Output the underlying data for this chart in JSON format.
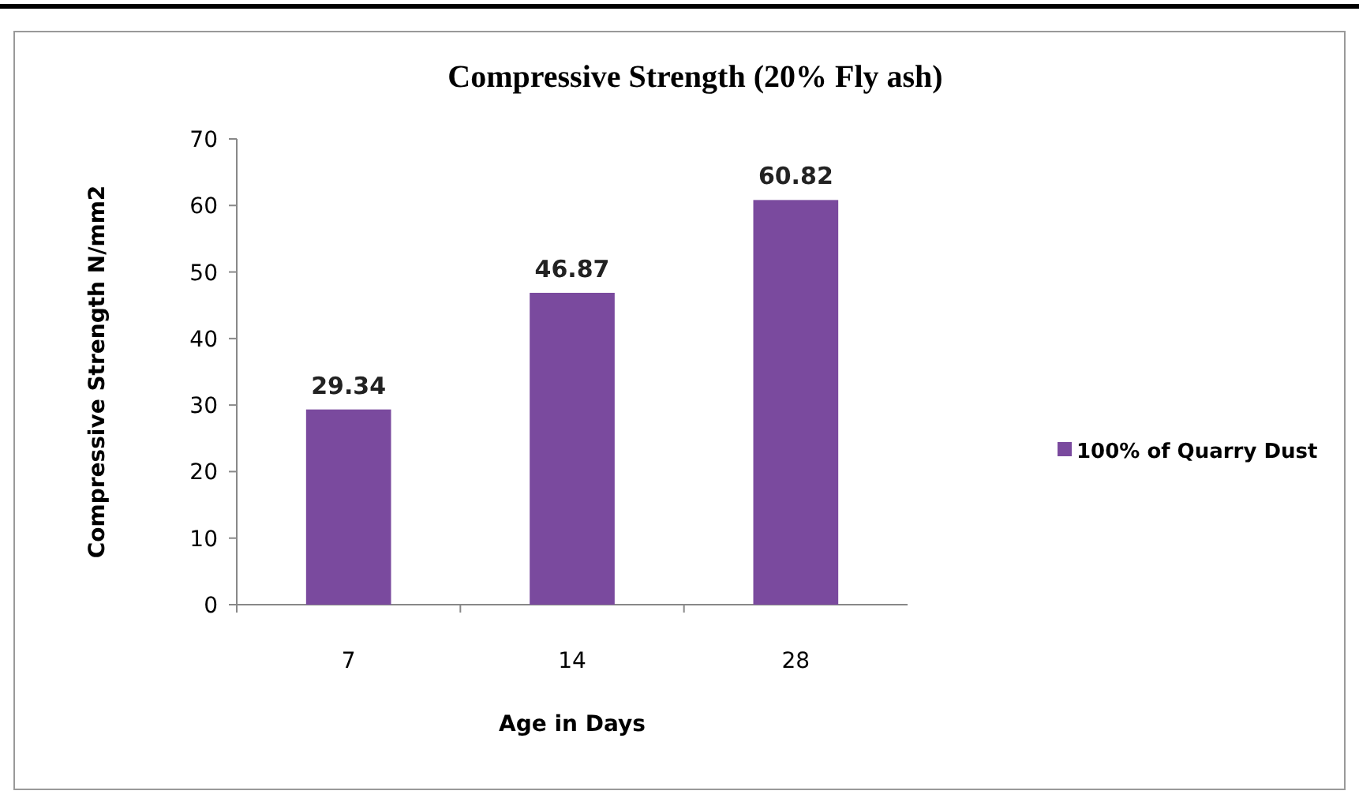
{
  "chart_data": {
    "type": "bar",
    "title": "Compressive Strength (20% Fly ash)",
    "xlabel": "Age in Days",
    "ylabel": "Compressive Strength N/mm2",
    "categories": [
      "7",
      "14",
      "28"
    ],
    "series": [
      {
        "name": "100% of Quarry Dust",
        "color": "#7a4a9e",
        "values": [
          29.34,
          46.87,
          60.82
        ]
      }
    ],
    "ylim": [
      0,
      70
    ],
    "yticks": [
      0,
      10,
      20,
      30,
      40,
      50,
      60,
      70
    ],
    "data_labels": true,
    "legend": "right",
    "grid": false
  }
}
